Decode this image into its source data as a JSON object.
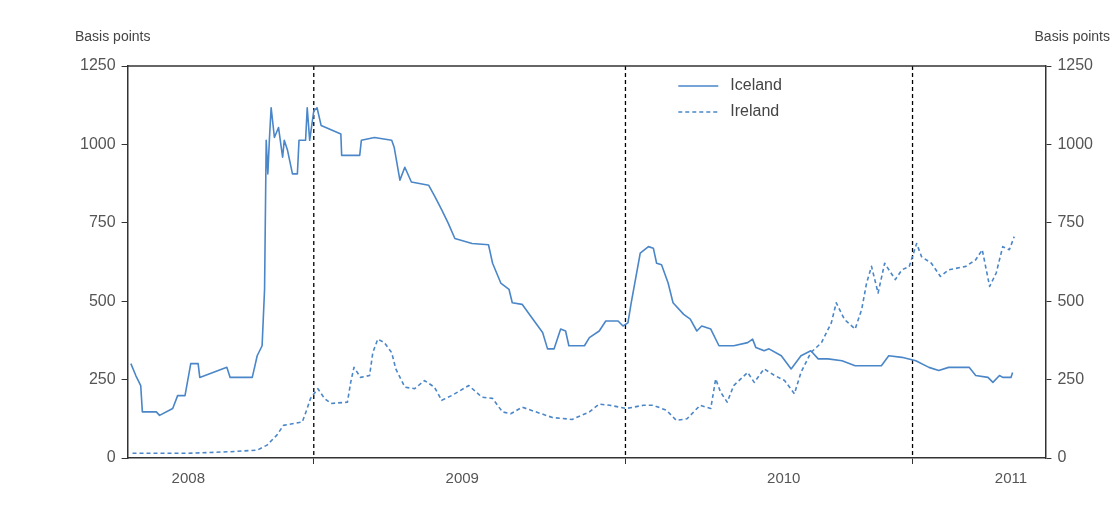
{
  "chart_data": {
    "type": "line",
    "ylabel": "Basis points",
    "y2label": "Basis points",
    "xlim": [
      "2008-05-19",
      "2011-06-12"
    ],
    "xticks": [
      {
        "value": "2008-08-01",
        "label": "2008"
      },
      {
        "value": "2009-01-01",
        "label": null
      },
      {
        "value": "2009-07-01",
        "label": "2009"
      },
      {
        "value": "2010-01-16",
        "label": null
      },
      {
        "value": "2010-07-28",
        "label": "2010"
      },
      {
        "value": "2011-01-01",
        "label": null
      },
      {
        "value": "2011-05-01",
        "label": "2011"
      }
    ],
    "ylim": [
      0,
      1250
    ],
    "yticks": [
      0,
      250,
      500,
      750,
      1000,
      1250
    ],
    "y2lim": [
      0,
      1250
    ],
    "y2ticks": [
      0,
      250,
      500,
      750,
      1000,
      1250
    ],
    "legend": "top",
    "ref_lines": [
      {
        "axis": "x",
        "value": "2009-01-01",
        "color": "#000000",
        "line_style": "dashed"
      },
      {
        "axis": "x",
        "value": "2010-01-16",
        "color": "#000000",
        "line_style": "dashed"
      },
      {
        "axis": "x",
        "value": "2011-01-01",
        "color": "#000000",
        "line_style": "dashed"
      }
    ],
    "series": [
      {
        "name": "Iceland",
        "color": "#4a86c8",
        "line_style": "solid",
        "x": [
          "2008-05-23",
          "2008-05-29",
          "2008-06-04",
          "2008-06-06",
          "2008-06-23",
          "2008-06-27",
          "2008-07-13",
          "2008-07-19",
          "2008-07-28",
          "2008-08-04",
          "2008-08-13",
          "2008-08-15",
          "2008-09-17",
          "2008-09-21",
          "2008-10-18",
          "2008-10-24",
          "2008-10-30",
          "2008-11-02",
          "2008-11-04",
          "2008-11-06",
          "2008-11-08",
          "2008-11-10",
          "2008-11-14",
          "2008-11-19",
          "2008-11-24",
          "2008-11-26",
          "2008-11-30",
          "2008-12-06",
          "2008-12-12",
          "2008-12-14",
          "2008-12-22",
          "2008-12-24",
          "2008-12-27",
          "2009-01-01",
          "2009-01-05",
          "2009-01-10",
          "2009-02-03",
          "2009-02-04",
          "2009-02-26",
          "2009-02-28",
          "2009-03-16",
          "2009-04-06",
          "2009-04-09",
          "2009-04-16",
          "2009-04-22",
          "2009-04-30",
          "2009-05-21",
          "2009-05-29",
          "2009-06-06",
          "2009-06-14",
          "2009-06-22",
          "2009-07-13",
          "2009-08-02",
          "2009-08-07",
          "2009-08-17",
          "2009-08-27",
          "2009-08-31",
          "2009-09-12",
          "2009-09-25",
          "2009-10-07",
          "2009-10-13",
          "2009-10-21",
          "2009-10-29",
          "2009-11-04",
          "2009-11-08",
          "2009-11-27",
          "2009-12-03",
          "2009-12-15",
          "2009-12-23",
          "2010-01-07",
          "2010-01-13",
          "2010-01-19",
          "2010-01-23",
          "2010-02-03",
          "2010-02-13",
          "2010-02-19",
          "2010-02-23",
          "2010-03-01",
          "2010-03-09",
          "2010-03-15",
          "2010-03-28",
          "2010-04-05",
          "2010-04-13",
          "2010-04-19",
          "2010-04-30",
          "2010-05-10",
          "2010-05-28",
          "2010-06-14",
          "2010-06-20",
          "2010-06-24",
          "2010-07-04",
          "2010-07-10",
          "2010-07-25",
          "2010-08-06",
          "2010-08-18",
          "2010-08-30",
          "2010-09-08",
          "2010-09-20",
          "2010-10-07",
          "2010-10-23",
          "2010-11-08",
          "2010-11-24",
          "2010-12-03",
          "2010-12-19",
          "2011-01-05",
          "2011-01-21",
          "2011-02-02",
          "2011-02-14",
          "2011-03-11",
          "2011-03-19",
          "2011-04-03",
          "2011-04-09",
          "2011-04-17",
          "2011-04-21",
          "2011-05-01",
          "2011-05-03"
        ],
        "values": [
          301,
          263,
          231,
          147,
          147,
          136,
          158,
          199,
          199,
          301,
          301,
          257,
          289,
          257,
          257,
          326,
          358,
          538,
          1013,
          906,
          1022,
          1117,
          1022,
          1054,
          959,
          1013,
          981,
          906,
          906,
          1013,
          1013,
          1117,
          1013,
          1107,
          1117,
          1060,
          1033,
          965,
          965,
          1013,
          1022,
          1013,
          991,
          886,
          927,
          880,
          870,
          832,
          791,
          748,
          700,
          684,
          680,
          621,
          558,
          538,
          495,
          490,
          443,
          400,
          348,
          348,
          411,
          405,
          358,
          358,
          384,
          405,
          437,
          437,
          421,
          431,
          495,
          653,
          674,
          669,
          621,
          616,
          558,
          495,
          458,
          443,
          405,
          421,
          411,
          358,
          358,
          368,
          379,
          352,
          342,
          348,
          326,
          284,
          326,
          342,
          316,
          316,
          310,
          294,
          294,
          294,
          326,
          321,
          310,
          289,
          279,
          289,
          289,
          263,
          257,
          241,
          263,
          257,
          257,
          273
        ]
      },
      {
        "name": "Ireland",
        "color": "#4a86c8",
        "line_style": "dashed",
        "x": [
          "2008-05-25",
          "2008-07-30",
          "2008-09-21",
          "2008-10-24",
          "2008-11-05",
          "2008-11-17",
          "2008-11-25",
          "2008-12-18",
          "2008-12-24",
          "2008-12-28",
          "2009-01-06",
          "2009-01-14",
          "2009-01-22",
          "2009-02-11",
          "2009-02-15",
          "2009-02-19",
          "2009-02-27",
          "2009-03-10",
          "2009-03-14",
          "2009-03-20",
          "2009-03-28",
          "2009-04-06",
          "2009-04-11",
          "2009-04-22",
          "2009-05-04",
          "2009-05-16",
          "2009-05-28",
          "2009-06-06",
          "2009-06-18",
          "2009-07-09",
          "2009-07-25",
          "2009-08-07",
          "2009-08-19",
          "2009-08-29",
          "2009-09-12",
          "2009-10-19",
          "2009-11-12",
          "2009-12-03",
          "2009-12-15",
          "2009-12-28",
          "2010-01-17",
          "2010-02-07",
          "2010-02-19",
          "2010-03-07",
          "2010-03-19",
          "2010-04-01",
          "2010-04-17",
          "2010-04-30",
          "2010-05-06",
          "2010-05-12",
          "2010-05-20",
          "2010-05-28",
          "2010-06-14",
          "2010-06-22",
          "2010-07-04",
          "2010-07-17",
          "2010-07-29",
          "2010-08-10",
          "2010-08-18",
          "2010-08-30",
          "2010-09-12",
          "2010-09-24",
          "2010-09-30",
          "2010-10-10",
          "2010-10-23",
          "2010-10-31",
          "2010-11-06",
          "2010-11-12",
          "2010-11-20",
          "2010-11-28",
          "2010-12-11",
          "2010-12-19",
          "2010-12-28",
          "2011-01-06",
          "2011-01-12",
          "2011-01-24",
          "2011-02-04",
          "2011-02-14",
          "2011-03-07",
          "2011-03-19",
          "2011-03-27",
          "2011-04-05",
          "2011-04-13",
          "2011-04-21",
          "2011-04-29",
          "2011-05-05"
        ],
        "values": [
          15,
          15,
          20,
          25,
          41,
          73,
          104,
          115,
          158,
          190,
          221,
          190,
          174,
          178,
          241,
          289,
          257,
          263,
          336,
          379,
          368,
          336,
          284,
          226,
          221,
          247,
          226,
          184,
          199,
          231,
          194,
          190,
          147,
          141,
          162,
          129,
          123,
          147,
          172,
          168,
          158,
          168,
          168,
          152,
          120,
          125,
          168,
          158,
          252,
          210,
          178,
          231,
          273,
          241,
          284,
          263,
          247,
          205,
          273,
          336,
          368,
          431,
          495,
          442,
          411,
          474,
          558,
          611,
          526,
          621,
          569,
          600,
          611,
          684,
          642,
          621,
          579,
          600,
          611,
          632,
          664,
          547,
          590,
          674,
          664,
          706
        ]
      }
    ]
  }
}
